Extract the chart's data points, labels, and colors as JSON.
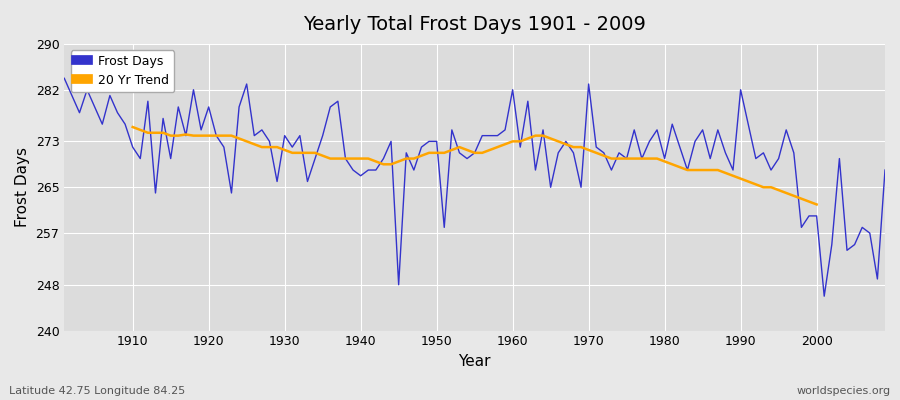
{
  "title": "Yearly Total Frost Days 1901 - 2009",
  "xlabel": "Year",
  "ylabel": "Frost Days",
  "footnote_left": "Latitude 42.75 Longitude 84.25",
  "footnote_right": "worldspecies.org",
  "legend_labels": [
    "Frost Days",
    "20 Yr Trend"
  ],
  "line_color": "#3333cc",
  "trend_color": "#FFA500",
  "bg_color": "#e8e8e8",
  "plot_bg_color": "#dcdcdc",
  "ylim": [
    240,
    290
  ],
  "xlim": [
    1901,
    2009
  ],
  "yticks": [
    240,
    248,
    257,
    265,
    273,
    282,
    290
  ],
  "xticks": [
    1910,
    1920,
    1930,
    1940,
    1950,
    1960,
    1970,
    1980,
    1990,
    2000
  ],
  "years": [
    1901,
    1902,
    1903,
    1904,
    1905,
    1906,
    1907,
    1908,
    1909,
    1910,
    1911,
    1912,
    1913,
    1914,
    1915,
    1916,
    1917,
    1918,
    1919,
    1920,
    1921,
    1922,
    1923,
    1924,
    1925,
    1926,
    1927,
    1928,
    1929,
    1930,
    1931,
    1932,
    1933,
    1934,
    1935,
    1936,
    1937,
    1938,
    1939,
    1940,
    1941,
    1942,
    1943,
    1944,
    1945,
    1946,
    1947,
    1948,
    1949,
    1950,
    1951,
    1952,
    1953,
    1954,
    1955,
    1956,
    1957,
    1958,
    1959,
    1960,
    1961,
    1962,
    1963,
    1964,
    1965,
    1966,
    1967,
    1968,
    1969,
    1970,
    1971,
    1972,
    1973,
    1974,
    1975,
    1976,
    1977,
    1978,
    1979,
    1980,
    1981,
    1982,
    1983,
    1984,
    1985,
    1986,
    1987,
    1988,
    1989,
    1990,
    1991,
    1992,
    1993,
    1994,
    1995,
    1996,
    1997,
    1998,
    1999,
    2000,
    2001,
    2002,
    2003,
    2004,
    2005,
    2006,
    2007,
    2008,
    2009
  ],
  "frost_days": [
    284,
    281,
    278,
    282,
    279,
    276,
    281,
    278,
    276,
    272,
    270,
    280,
    264,
    277,
    270,
    279,
    274,
    282,
    275,
    279,
    274,
    272,
    264,
    279,
    283,
    274,
    275,
    273,
    266,
    274,
    272,
    274,
    266,
    270,
    274,
    279,
    280,
    270,
    268,
    267,
    268,
    268,
    270,
    273,
    248,
    271,
    268,
    272,
    273,
    273,
    258,
    275,
    271,
    270,
    271,
    274,
    274,
    274,
    275,
    282,
    272,
    280,
    268,
    275,
    265,
    271,
    273,
    271,
    265,
    283,
    272,
    271,
    268,
    271,
    270,
    275,
    270,
    273,
    275,
    270,
    276,
    272,
    268,
    273,
    275,
    270,
    275,
    271,
    268,
    282,
    276,
    270,
    271,
    268,
    270,
    275,
    271,
    258,
    260,
    260,
    246,
    255,
    270,
    254,
    255,
    258,
    257,
    249,
    268
  ],
  "trend_years": [
    1910,
    1911,
    1912,
    1913,
    1914,
    1915,
    1916,
    1917,
    1918,
    1919,
    1920,
    1921,
    1922,
    1923,
    1924,
    1925,
    1926,
    1927,
    1928,
    1929,
    1930,
    1931,
    1932,
    1933,
    1934,
    1935,
    1936,
    1937,
    1938,
    1939,
    1940,
    1941,
    1942,
    1943,
    1944,
    1945,
    1946,
    1947,
    1948,
    1949,
    1950,
    1951,
    1952,
    1953,
    1954,
    1955,
    1956,
    1957,
    1958,
    1959,
    1960,
    1961,
    1962,
    1963,
    1964,
    1965,
    1966,
    1967,
    1968,
    1969,
    1970,
    1971,
    1972,
    1973,
    1974,
    1975,
    1976,
    1977,
    1978,
    1979,
    1980,
    1981,
    1982,
    1983,
    1984,
    1985,
    1986,
    1987,
    1988,
    1989,
    1990,
    1991,
    1992,
    1993,
    1994,
    1995,
    1996,
    1997,
    1998,
    2000
  ],
  "trend_values": [
    275.5,
    275.0,
    274.5,
    274.5,
    274.5,
    274.0,
    274.0,
    274.2,
    274.0,
    274.0,
    274.0,
    274.0,
    274.0,
    274.0,
    273.5,
    273.0,
    272.5,
    272.0,
    272.0,
    272.0,
    271.5,
    271.0,
    271.0,
    271.0,
    271.0,
    270.5,
    270.0,
    270.0,
    270.0,
    270.0,
    270.0,
    270.0,
    269.5,
    269.0,
    269.0,
    269.5,
    270.0,
    270.0,
    270.5,
    271.0,
    271.0,
    271.0,
    271.5,
    272.0,
    271.5,
    271.0,
    271.0,
    271.5,
    272.0,
    272.5,
    273.0,
    273.0,
    273.5,
    274.0,
    274.0,
    273.5,
    273.0,
    272.5,
    272.0,
    272.0,
    271.5,
    271.0,
    270.5,
    270.0,
    270.0,
    270.0,
    270.0,
    270.0,
    270.0,
    270.0,
    269.5,
    269.0,
    268.5,
    268.0,
    268.0,
    268.0,
    268.0,
    268.0,
    267.5,
    267.0,
    266.5,
    266.0,
    265.5,
    265.0,
    265.0,
    264.5,
    264.0,
    263.5,
    263.0,
    262.0
  ]
}
